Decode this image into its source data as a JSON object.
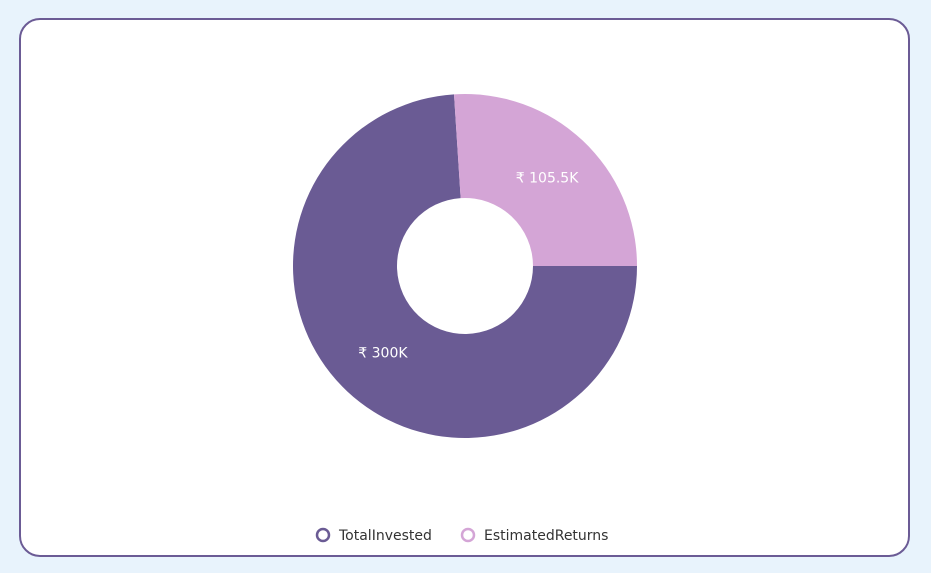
{
  "chart_data": {
    "type": "donut",
    "categories": [
      "TotalInvested",
      "EstimatedReturns"
    ],
    "values": [
      300000,
      105500
    ],
    "value_labels": [
      "₹ 300K",
      "₹ 105.5K"
    ],
    "colors": [
      "#6a5b94",
      "#d4a5d6"
    ],
    "legend": "bottom"
  }
}
